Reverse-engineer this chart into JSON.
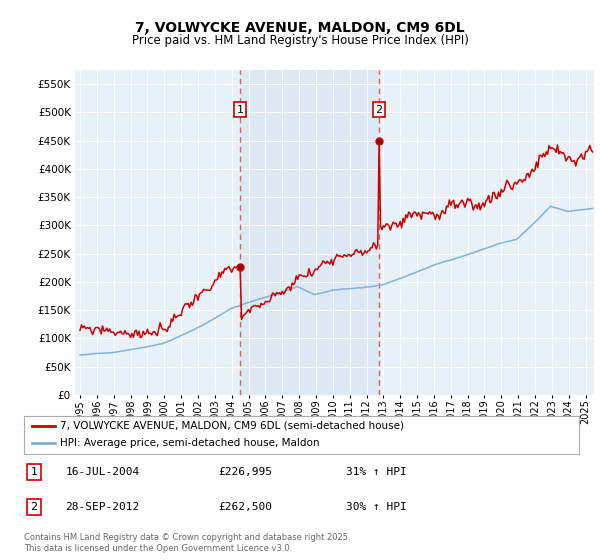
{
  "title": "7, VOLWYCKE AVENUE, MALDON, CM9 6DL",
  "subtitle": "Price paid vs. HM Land Registry's House Price Index (HPI)",
  "ylabel_values": [
    0,
    50000,
    100000,
    150000,
    200000,
    250000,
    300000,
    350000,
    400000,
    450000,
    500000,
    550000
  ],
  "ylim": [
    0,
    575000
  ],
  "xlim_start": 1994.7,
  "xlim_end": 2025.5,
  "sale1_date": 2004.54,
  "sale1_price": 226995,
  "sale2_date": 2012.74,
  "sale2_price": 262500,
  "red_color": "#cc0000",
  "blue_color": "#7fb3d9",
  "dashed_color": "#e06060",
  "highlight_color": "#dce9f5",
  "background_color": "#e8f0f8",
  "grid_color": "#c8d8e8",
  "legend_label_red": "7, VOLWYCKE AVENUE, MALDON, CM9 6DL (semi-detached house)",
  "legend_label_blue": "HPI: Average price, semi-detached house, Maldon",
  "annotation1_date": "16-JUL-2004",
  "annotation1_price": "£226,995",
  "annotation1_hpi": "31% ↑ HPI",
  "annotation2_date": "28-SEP-2012",
  "annotation2_price": "£262,500",
  "annotation2_hpi": "30% ↑ HPI",
  "footer": "Contains HM Land Registry data © Crown copyright and database right 2025.\nThis data is licensed under the Open Government Licence v3.0."
}
